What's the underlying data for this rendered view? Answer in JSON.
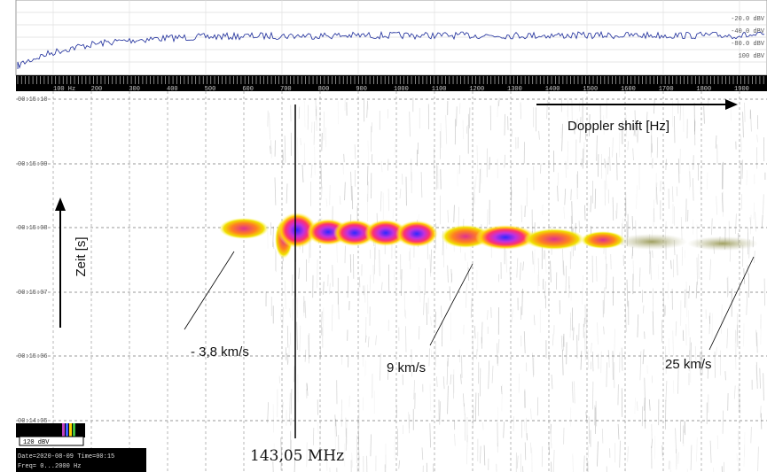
{
  "spectrum": {
    "level_labels": [
      "-20.0 dBV",
      "-40.0 dBV",
      "-80.0 dBV",
      "100 dBV"
    ],
    "frequency_labels": [
      "100 Hz",
      "200",
      "300",
      "400",
      "500",
      "600",
      "700",
      "800",
      "900",
      "1000",
      "1100",
      "1200",
      "1300",
      "1400",
      "1500",
      "1600",
      "1700",
      "1800",
      "1900"
    ]
  },
  "time_labels": [
    "00:15:10",
    "00:15:09",
    "00:15:08",
    "00:15:07",
    "00:15:06",
    "00:14:05"
  ],
  "annotations": {
    "x_axis": "Doppler shift [Hz]",
    "y_axis": "Zeit [s]",
    "speed_1": "- 3,8 km/s",
    "speed_2": "9 km/s",
    "speed_3": "25 km/s",
    "carrier": "143,05 MHz"
  },
  "legend": {
    "level": "120 dBV",
    "date_line": "Date=2020-08-09 Time=00:15",
    "freq_line": "Freq= 0...2000 Hz"
  }
}
